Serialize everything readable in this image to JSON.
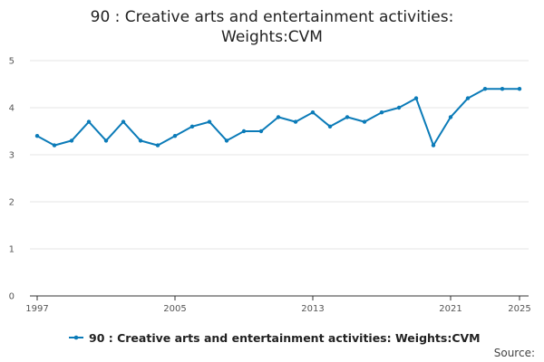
{
  "colors": {
    "series": "#0b7bb8",
    "grid": "#e4e4e4",
    "axis": "#333333"
  },
  "chart_data": {
    "type": "line",
    "title_lines": [
      "90 : Creative arts and entertainment activities:",
      "Weights:CVM"
    ],
    "xlabel": "",
    "ylabel": "",
    "xlim": [
      1997,
      2025
    ],
    "ylim": [
      0,
      5
    ],
    "yticks": [
      0,
      1,
      2,
      3,
      4,
      5
    ],
    "xticks": [
      1997,
      2005,
      2013,
      2021,
      2025
    ],
    "grid": true,
    "legend_position": "bottom",
    "source_label": "Source:",
    "series": [
      {
        "name": "90 : Creative arts and entertainment activities: Weights:CVM",
        "x": [
          1997,
          1998,
          1999,
          2000,
          2001,
          2002,
          2003,
          2004,
          2005,
          2006,
          2007,
          2008,
          2009,
          2010,
          2011,
          2012,
          2013,
          2014,
          2015,
          2016,
          2017,
          2018,
          2019,
          2020,
          2021,
          2022,
          2023,
          2024,
          2025
        ],
        "values": [
          3.4,
          3.2,
          3.3,
          3.7,
          3.3,
          3.7,
          3.3,
          3.2,
          3.4,
          3.6,
          3.7,
          3.3,
          3.5,
          3.5,
          3.8,
          3.7,
          3.9,
          3.6,
          3.8,
          3.7,
          3.9,
          4.0,
          4.2,
          3.2,
          3.8,
          4.2,
          4.4,
          4.4,
          4.4
        ]
      }
    ]
  }
}
